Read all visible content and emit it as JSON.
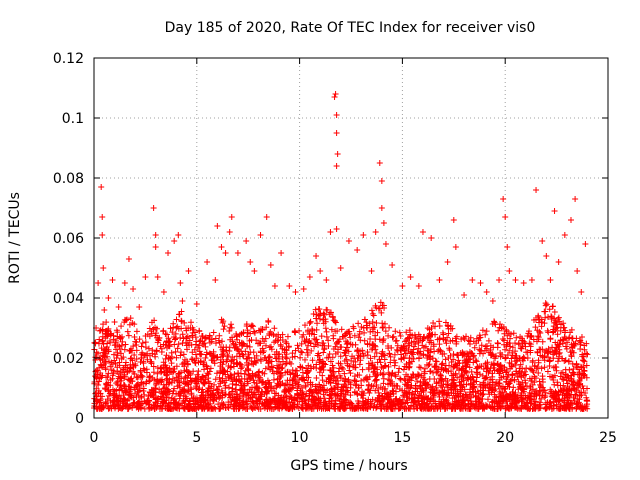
{
  "chart_data": {
    "type": "scatter",
    "title": "Day 185 of 2020, Rate Of TEC Index for receiver vis0",
    "xlabel": "GPS time / hours",
    "ylabel": "ROTI / TECUs",
    "xlim": [
      0,
      25
    ],
    "ylim": [
      0,
      0.12
    ],
    "xticks": [
      "0",
      "5",
      "10",
      "15",
      "20",
      "25"
    ],
    "yticks": [
      "0",
      "0.02",
      "0.04",
      "0.06",
      "0.08",
      "0.1",
      "0.12"
    ],
    "grid": true,
    "marker": "plus",
    "color": "#ff0000",
    "series": [
      {
        "name": "vis0",
        "x": [
          0.1,
          0.2,
          0.35,
          0.4,
          0.4,
          0.45,
          0.5,
          0.7,
          0.9,
          1.0,
          1.2,
          1.5,
          1.7,
          1.9,
          2.2,
          2.5,
          2.9,
          3.0,
          3.0,
          3.1,
          3.4,
          3.6,
          3.9,
          4.1,
          4.2,
          4.3,
          4.6,
          5.0,
          5.5,
          5.9,
          6.0,
          6.2,
          6.4,
          6.6,
          6.7,
          7.0,
          7.4,
          7.6,
          7.8,
          8.1,
          8.4,
          8.6,
          8.8,
          9.1,
          9.5,
          9.8,
          10.2,
          10.5,
          10.8,
          11.0,
          11.3,
          11.5,
          11.7,
          11.75,
          11.8,
          11.8,
          11.85,
          11.8,
          11.8,
          12.0,
          12.4,
          12.8,
          13.1,
          13.5,
          13.7,
          13.9,
          14.0,
          14.0,
          14.1,
          14.2,
          14.5,
          15.0,
          15.4,
          15.8,
          16.0,
          16.4,
          16.8,
          17.2,
          17.5,
          17.6,
          18.0,
          18.4,
          18.8,
          19.1,
          19.4,
          19.7,
          19.9,
          20.0,
          20.1,
          20.2,
          20.5,
          20.9,
          21.3,
          21.5,
          21.8,
          22.0,
          22.2,
          22.4,
          22.6,
          22.9,
          23.2,
          23.4,
          23.5,
          23.7,
          23.9,
          0.3,
          1.1,
          2.0,
          3.3,
          4.5,
          5.2,
          6.3,
          7.2,
          8.3,
          9.3,
          10.4,
          11.1,
          12.2,
          13.3,
          14.3,
          15.2,
          16.2,
          17.0,
          18.2,
          19.3,
          20.3,
          21.1,
          22.1,
          23.1,
          23.8
        ],
        "y": [
          0.03,
          0.045,
          0.077,
          0.067,
          0.061,
          0.05,
          0.036,
          0.04,
          0.046,
          0.032,
          0.037,
          0.045,
          0.053,
          0.043,
          0.037,
          0.047,
          0.07,
          0.061,
          0.057,
          0.047,
          0.042,
          0.055,
          0.059,
          0.061,
          0.045,
          0.039,
          0.049,
          0.038,
          0.052,
          0.046,
          0.064,
          0.057,
          0.055,
          0.062,
          0.067,
          0.055,
          0.059,
          0.052,
          0.049,
          0.061,
          0.067,
          0.051,
          0.044,
          0.055,
          0.044,
          0.042,
          0.043,
          0.047,
          0.054,
          0.049,
          0.046,
          0.062,
          0.107,
          0.108,
          0.101,
          0.095,
          0.088,
          0.084,
          0.063,
          0.05,
          0.059,
          0.056,
          0.061,
          0.049,
          0.062,
          0.085,
          0.079,
          0.07,
          0.065,
          0.058,
          0.051,
          0.044,
          0.047,
          0.044,
          0.062,
          0.06,
          0.046,
          0.052,
          0.066,
          0.057,
          0.041,
          0.046,
          0.045,
          0.042,
          0.039,
          0.046,
          0.073,
          0.067,
          0.057,
          0.049,
          0.046,
          0.045,
          0.046,
          0.076,
          0.059,
          0.054,
          0.046,
          0.069,
          0.052,
          0.061,
          0.066,
          0.073,
          0.049,
          0.042,
          0.058,
          0.015,
          0.02,
          0.018,
          0.022,
          0.016,
          0.019,
          0.021,
          0.017,
          0.02,
          0.018,
          0.021,
          0.025,
          0.019,
          0.022,
          0.024,
          0.018,
          0.02,
          0.016,
          0.019,
          0.021,
          0.018,
          0.02,
          0.022,
          0.019,
          0.017
        ],
        "dense_band": {
          "floor": 0.003,
          "typical_ceiling": 0.03,
          "x_start": 0.0,
          "x_end": 24.0,
          "count": 4000,
          "profile": [
            [
              0.0,
              0.025
            ],
            [
              0.5,
              0.033
            ],
            [
              1.0,
              0.028
            ],
            [
              1.7,
              0.036
            ],
            [
              2.3,
              0.026
            ],
            [
              3.0,
              0.034
            ],
            [
              3.5,
              0.028
            ],
            [
              4.2,
              0.036
            ],
            [
              5.0,
              0.03
            ],
            [
              5.5,
              0.028
            ],
            [
              6.0,
              0.032
            ],
            [
              6.5,
              0.034
            ],
            [
              7.0,
              0.028
            ],
            [
              7.5,
              0.032
            ],
            [
              8.0,
              0.03
            ],
            [
              8.5,
              0.033
            ],
            [
              9.0,
              0.028
            ],
            [
              9.5,
              0.028
            ],
            [
              10.0,
              0.03
            ],
            [
              10.5,
              0.035
            ],
            [
              11.0,
              0.038
            ],
            [
              11.5,
              0.036
            ],
            [
              12.0,
              0.03
            ],
            [
              12.5,
              0.03
            ],
            [
              13.0,
              0.033
            ],
            [
              13.5,
              0.036
            ],
            [
              14.0,
              0.04
            ],
            [
              14.5,
              0.03
            ],
            [
              15.0,
              0.028
            ],
            [
              15.5,
              0.03
            ],
            [
              16.0,
              0.03
            ],
            [
              16.5,
              0.032
            ],
            [
              17.0,
              0.033
            ],
            [
              17.5,
              0.03
            ],
            [
              18.0,
              0.028
            ],
            [
              18.5,
              0.028
            ],
            [
              19.0,
              0.03
            ],
            [
              19.5,
              0.033
            ],
            [
              20.0,
              0.03
            ],
            [
              20.5,
              0.028
            ],
            [
              21.0,
              0.028
            ],
            [
              21.5,
              0.034
            ],
            [
              22.0,
              0.04
            ],
            [
              22.5,
              0.036
            ],
            [
              23.0,
              0.03
            ],
            [
              23.5,
              0.03
            ],
            [
              24.0,
              0.025
            ]
          ]
        }
      }
    ]
  }
}
